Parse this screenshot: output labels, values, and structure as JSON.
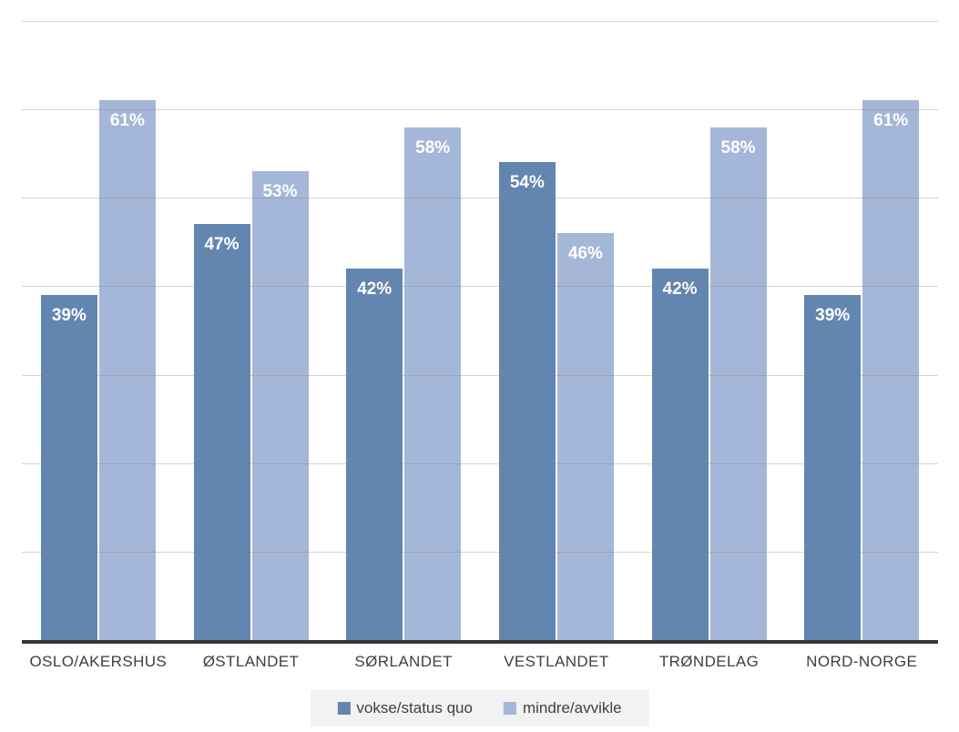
{
  "chart_data": {
    "type": "bar",
    "title": "",
    "categories": [
      "OSLO/AKERSHUS",
      "ØSTLANDET",
      "SØRLANDET",
      "VESTLANDET",
      "TRØNDELAG",
      "NORD-NORGE"
    ],
    "series": [
      {
        "name": "vokse/status quo",
        "color": "#6286b0",
        "values": [
          39,
          47,
          42,
          54,
          42,
          39
        ]
      },
      {
        "name": "mindre/avvikle",
        "color": "#a5b7d8",
        "values": [
          61,
          53,
          58,
          46,
          58,
          61
        ]
      }
    ],
    "data_labels": [
      [
        "39%",
        "47%",
        "42%",
        "54%",
        "42%",
        "39%"
      ],
      [
        "61%",
        "53%",
        "58%",
        "46%",
        "58%",
        "61%"
      ]
    ],
    "value_suffix": "%",
    "ylim": [
      0,
      70
    ],
    "gridline_step": 10,
    "grid": true,
    "legend_position": "bottom",
    "colors": {
      "background": "#ffffff",
      "gridline": "#d1d1d1",
      "axis_line": "#363636",
      "category_label": "#3f3f3f",
      "data_label": "#ffffff",
      "legend_bg": "#f2f2f2",
      "legend_text": "#404040"
    }
  }
}
